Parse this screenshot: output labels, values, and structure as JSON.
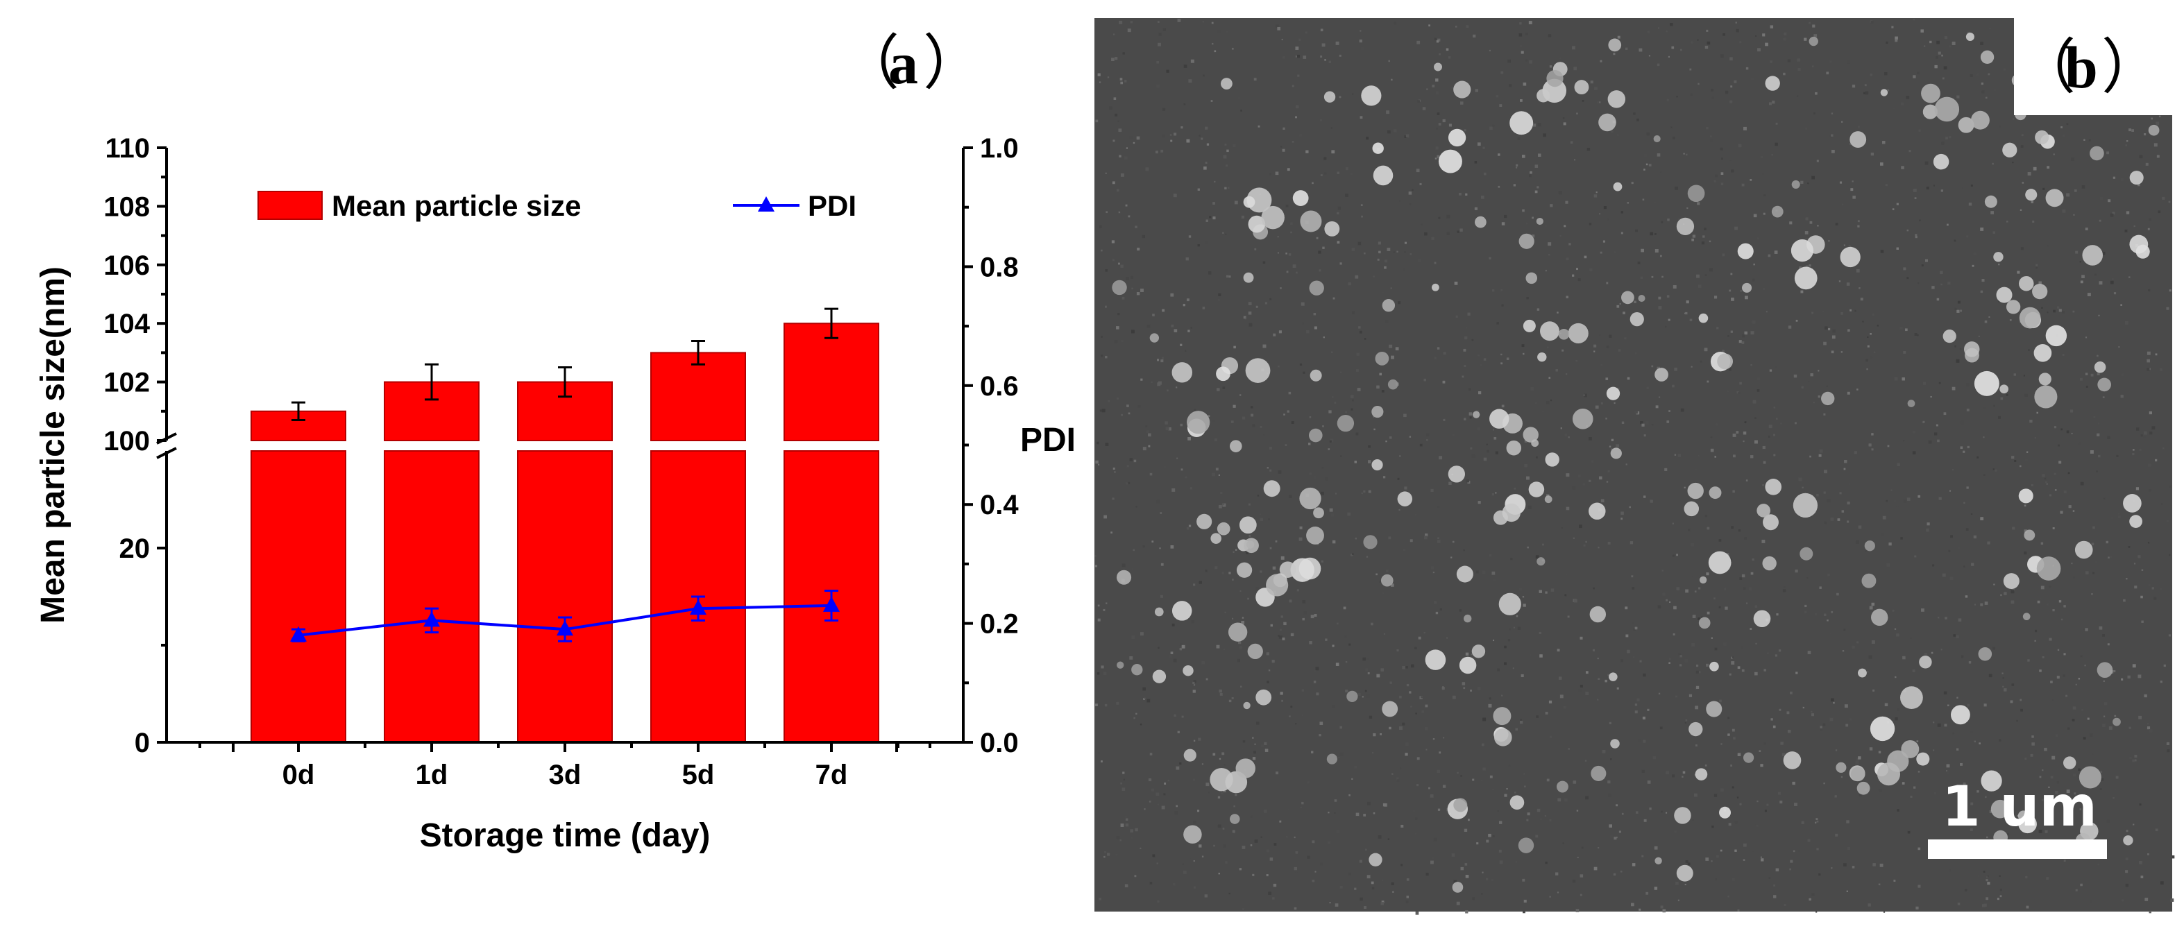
{
  "panel_a": {
    "label_open": "（",
    "label_letter": "a",
    "label_close": "）"
  },
  "panel_b": {
    "label_open": "（",
    "label_letter": "b",
    "label_close": "）",
    "scale_bar_label": "1 um",
    "image_description_name": "sem-micrograph"
  },
  "colors": {
    "bar": "#ff0000",
    "pdi": "#0000ff",
    "sem_bg": "#4a4a4a"
  },
  "chart_data": {
    "type": "bar",
    "title": "",
    "xlabel": "Storage time (day)",
    "ylabel": "Mean particle size(nm)",
    "y2label": "PDI",
    "categories": [
      "0d",
      "1d",
      "3d",
      "5d",
      "7d"
    ],
    "broken_y_axis": {
      "lower_range": [
        0,
        30
      ],
      "upper_range": [
        100,
        110
      ],
      "lower_ticks": [
        "0",
        "20"
      ],
      "upper_ticks": [
        "100",
        "102",
        "104",
        "106",
        "108",
        "110"
      ]
    },
    "y2lim": [
      0.0,
      1.0
    ],
    "y2_ticks": [
      "0.0",
      "0.2",
      "0.4",
      "0.6",
      "0.8",
      "1.0"
    ],
    "series": [
      {
        "name": "Mean particle size",
        "kind": "bar",
        "axis": "left",
        "values": [
          101.0,
          102.0,
          102.0,
          103.0,
          104.0
        ],
        "errors": [
          0.3,
          0.6,
          0.5,
          0.4,
          0.5
        ]
      },
      {
        "name": "PDI",
        "kind": "line",
        "axis": "right",
        "marker": "triangle",
        "values": [
          0.18,
          0.205,
          0.19,
          0.225,
          0.23
        ],
        "errors": [
          0.01,
          0.02,
          0.02,
          0.02,
          0.025
        ]
      }
    ],
    "legend": [
      "Mean particle size",
      "PDI"
    ],
    "legend_location": "top"
  }
}
